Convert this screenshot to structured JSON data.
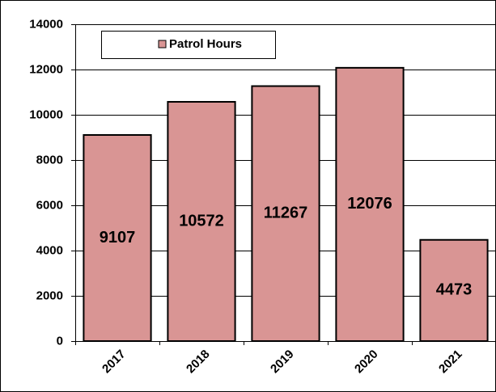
{
  "chart_data": {
    "type": "bar",
    "legend": "Patrol Hours",
    "categories": [
      "2017",
      "2018",
      "2019",
      "2020",
      "2021"
    ],
    "values": [
      9107,
      10572,
      11267,
      12076,
      4473
    ],
    "color": "#d99594",
    "ylim": [
      0,
      14000
    ],
    "yticks": [
      0,
      2000,
      4000,
      6000,
      8000,
      10000,
      12000,
      14000
    ],
    "grid": true
  }
}
